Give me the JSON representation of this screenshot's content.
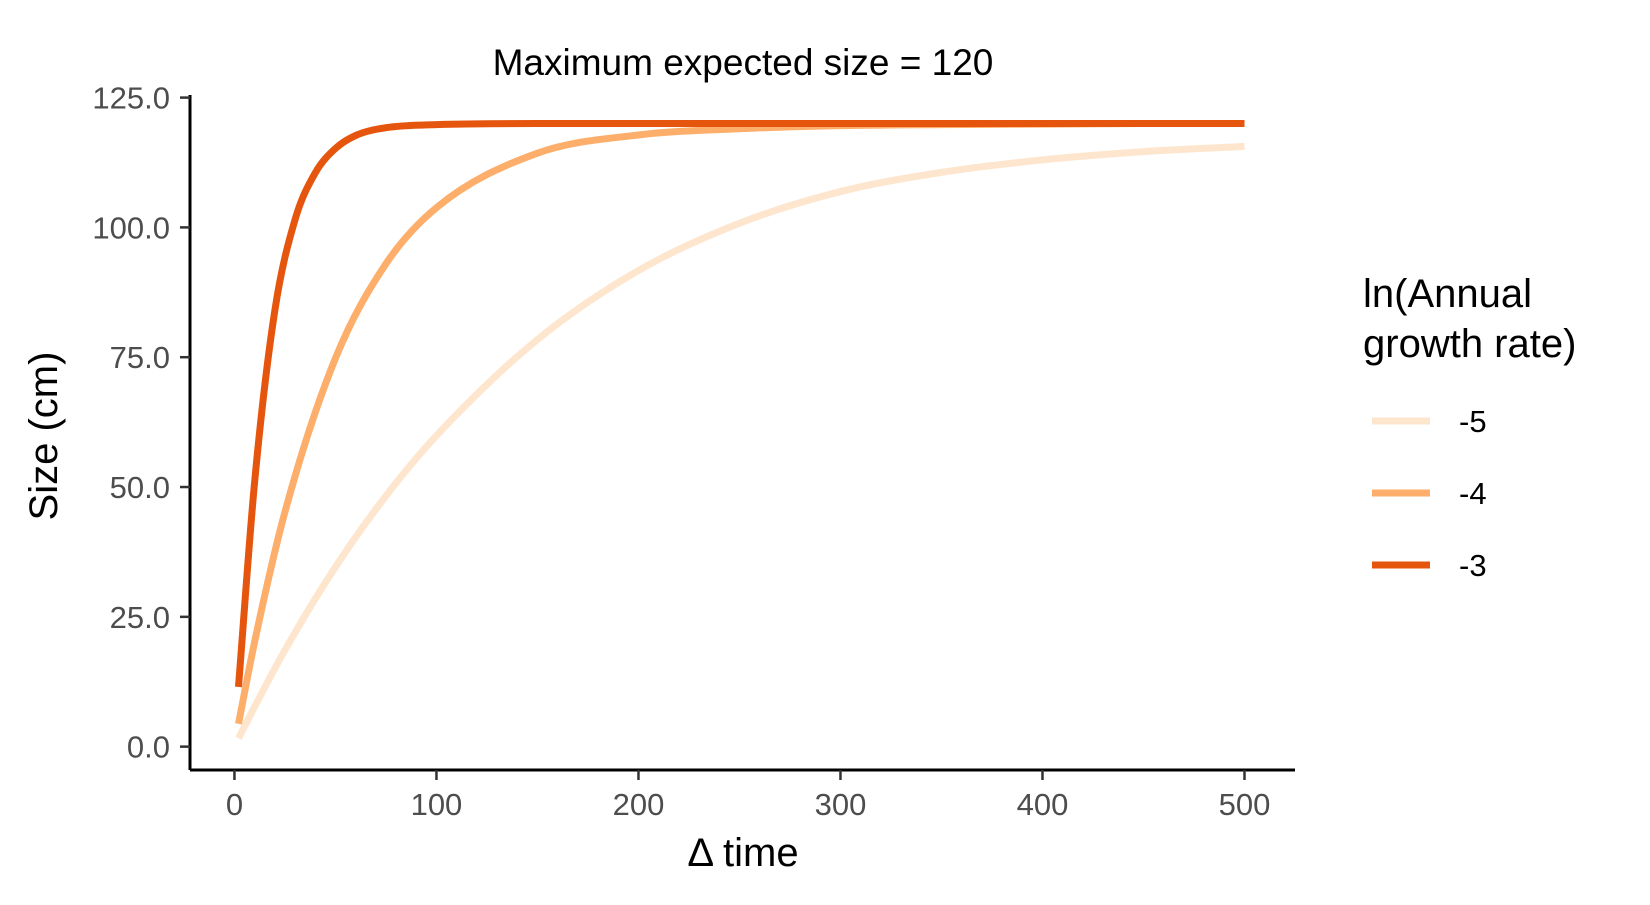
{
  "chart_data": {
    "type": "line",
    "title": "Maximum expected size = 120",
    "xlabel": "Δ time",
    "ylabel": "Size (cm)",
    "xlim": [
      -22,
      525
    ],
    "ylim": [
      -4.5,
      125.5
    ],
    "x_ticks": [
      0,
      100,
      200,
      300,
      400,
      500
    ],
    "x_tick_labels": [
      "0",
      "100",
      "200",
      "300",
      "400",
      "500"
    ],
    "y_ticks": [
      0,
      25,
      50,
      75,
      100,
      125
    ],
    "y_tick_labels": [
      "0.0",
      "25.0",
      "50.0",
      "75.0",
      "100.0",
      "125.0"
    ],
    "grid": false,
    "legend": {
      "title_lines": [
        "ln(Annual",
        "growth rate)"
      ],
      "position": "right"
    },
    "series": [
      {
        "name": "-5",
        "color": "#fee6ce",
        "x": [
          2,
          10,
          25,
          50,
          75,
          100,
          150,
          200,
          250,
          300,
          350,
          400,
          450,
          500
        ],
        "y": [
          1.6,
          7.7,
          18.6,
          34.6,
          48.3,
          59.9,
          78.4,
          91.7,
          100.8,
          106.9,
          110.6,
          113.0,
          114.6,
          115.6
        ]
      },
      {
        "name": "-4",
        "color": "#fdae6b",
        "x": [
          2,
          10,
          25,
          50,
          75,
          100,
          150,
          200,
          250,
          300,
          350,
          400,
          450,
          500
        ],
        "y": [
          4.4,
          20.2,
          45.2,
          74.8,
          93.0,
          103.8,
          114.3,
          117.8,
          119.0,
          119.6,
          119.8,
          119.9,
          120.0,
          120.0
        ]
      },
      {
        "name": "-3",
        "color": "#e6550d",
        "x": [
          2,
          10,
          20,
          30,
          40,
          50,
          60,
          75,
          100,
          150,
          200,
          300,
          400,
          500
        ],
        "y": [
          11.5,
          51.0,
          84.0,
          101.5,
          110.5,
          115.2,
          117.7,
          119.2,
          119.8,
          120.0,
          120.0,
          120.0,
          120.0,
          120.0
        ]
      }
    ]
  }
}
